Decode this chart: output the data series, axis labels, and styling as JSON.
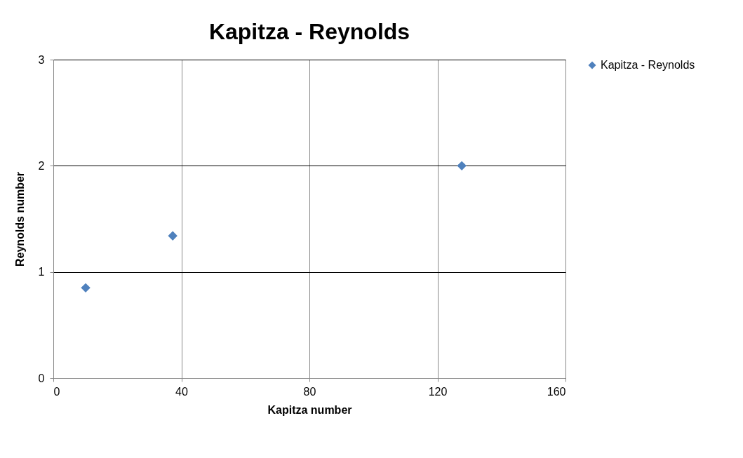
{
  "chart_data": {
    "type": "scatter",
    "title": "Kapitza - Reynolds",
    "xlabel": "Kapitza number",
    "ylabel": "Reynolds number",
    "x": [
      10.1,
      37.3,
      127.6
    ],
    "series": [
      {
        "name": "Kapitza - Reynolds",
        "color": "#4f81bd",
        "values": [
          0.85,
          1.34,
          2.0
        ]
      }
    ],
    "xlim": [
      0,
      160
    ],
    "xticks": [
      0,
      40,
      80,
      120,
      160
    ],
    "ylim": [
      0,
      3
    ],
    "yticks": [
      0,
      1,
      2,
      3
    ],
    "grid": true,
    "legend": "right",
    "marker": "diamond"
  }
}
